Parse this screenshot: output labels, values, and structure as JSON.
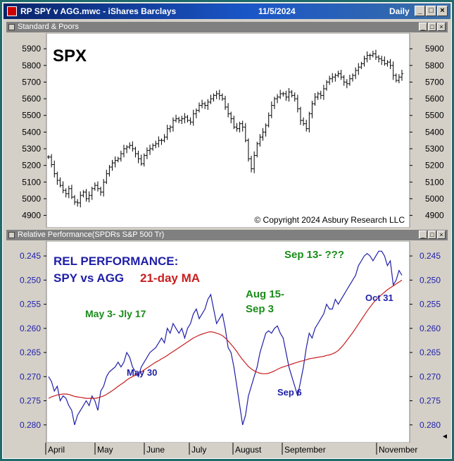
{
  "window": {
    "title": "RP SPY v AGG.mwc - iShares Barclays",
    "date": "11/5/2024",
    "period": "Daily"
  },
  "top_pane": {
    "header": "Standard & Poors",
    "label": "SPX",
    "copyright": "© Copyright 2024 Asbury Research LLC"
  },
  "bottom_pane": {
    "header": "Relative Performance(SPDRs S&P 500 Tr)",
    "title_line1": "REL PERFORMANCE:",
    "title_line2": "SPY vs AGG",
    "ma_label": "21-day MA",
    "annotations": [
      {
        "text": "May 3- Jly 17",
        "color": "#1a8c1a"
      },
      {
        "text": "May 30",
        "color": "#1f1fa8"
      },
      {
        "text": "Aug 15-",
        "color": "#1a8c1a"
      },
      {
        "text": "Sep 3",
        "color": "#1a8c1a"
      },
      {
        "text": "Sep 6",
        "color": "#1f1fa8"
      },
      {
        "text": "Sep 13- ???",
        "color": "#1a8c1a"
      },
      {
        "text": "Oct 31",
        "color": "#1f1fa8"
      }
    ]
  },
  "colors": {
    "price": "#000000",
    "rel": "#1f1fa8",
    "ma": "#c81e1e",
    "green": "#1a8c1a"
  },
  "chart_data": [
    {
      "type": "ohlc",
      "y_ticks": [
        4900,
        5000,
        5100,
        5200,
        5300,
        5400,
        5500,
        5600,
        5700,
        5800,
        5900
      ],
      "ylim": [
        4860,
        5960
      ],
      "x_ticks": [
        "April",
        "May",
        "June",
        "July",
        "August",
        "September",
        "November"
      ],
      "close": [
        5250,
        5205,
        5150,
        5110,
        5080,
        5050,
        5030,
        5060,
        5010,
        4980,
        4975,
        5020,
        5040,
        5000,
        5020,
        5060,
        5080,
        5060,
        5040,
        5100,
        5150,
        5190,
        5215,
        5230,
        5240,
        5270,
        5300,
        5310,
        5320,
        5300,
        5270,
        5240,
        5210,
        5260,
        5290,
        5300,
        5320,
        5330,
        5350,
        5350,
        5370,
        5420,
        5430,
        5470,
        5480,
        5470,
        5480,
        5490,
        5470,
        5460,
        5510,
        5530,
        5560,
        5570,
        5560,
        5580,
        5600,
        5620,
        5630,
        5620,
        5600,
        5550,
        5510,
        5480,
        5430,
        5420,
        5450,
        5430,
        5350,
        5240,
        5180,
        5260,
        5330,
        5370,
        5400,
        5440,
        5500,
        5560,
        5600,
        5610,
        5630,
        5630,
        5610,
        5640,
        5620,
        5600,
        5540,
        5470,
        5450,
        5420,
        5510,
        5570,
        5610,
        5630,
        5620,
        5660,
        5700,
        5720,
        5730,
        5740,
        5750,
        5730,
        5700,
        5690,
        5720,
        5740,
        5770,
        5790,
        5810,
        5840,
        5860,
        5860,
        5870,
        5850,
        5840,
        5830,
        5810,
        5820,
        5800,
        5740,
        5710,
        5730,
        5750
      ]
    },
    {
      "type": "line",
      "y_ticks": [
        0.245,
        0.25,
        0.255,
        0.26,
        0.265,
        0.27,
        0.275,
        0.28
      ],
      "ylim": [
        0.2425,
        0.2831
      ],
      "inverted": true,
      "x_ticks": [
        "April",
        "May",
        "June",
        "July",
        "August",
        "September",
        "November"
      ],
      "series": [
        {
          "name": "SPY vs AGG",
          "values": [
            0.27,
            0.271,
            0.273,
            0.272,
            0.275,
            0.274,
            0.2745,
            0.276,
            0.277,
            0.28,
            0.278,
            0.277,
            0.276,
            0.275,
            0.276,
            0.274,
            0.275,
            0.277,
            0.273,
            0.272,
            0.27,
            0.269,
            0.2685,
            0.268,
            0.267,
            0.268,
            0.267,
            0.265,
            0.266,
            0.268,
            0.269,
            0.27,
            0.268,
            0.267,
            0.266,
            0.265,
            0.2645,
            0.264,
            0.263,
            0.262,
            0.263,
            0.26,
            0.261,
            0.259,
            0.26,
            0.261,
            0.26,
            0.262,
            0.26,
            0.259,
            0.257,
            0.256,
            0.258,
            0.257,
            0.256,
            0.254,
            0.253,
            0.256,
            0.259,
            0.258,
            0.257,
            0.26,
            0.264,
            0.265,
            0.268,
            0.272,
            0.276,
            0.28,
            0.278,
            0.274,
            0.272,
            0.27,
            0.268,
            0.265,
            0.263,
            0.261,
            0.2605,
            0.261,
            0.26,
            0.2595,
            0.261,
            0.262,
            0.265,
            0.268,
            0.27,
            0.272,
            0.274,
            0.271,
            0.268,
            0.264,
            0.261,
            0.262,
            0.26,
            0.259,
            0.258,
            0.257,
            0.255,
            0.256,
            0.256,
            0.254,
            0.255,
            0.254,
            0.253,
            0.252,
            0.251,
            0.25,
            0.249,
            0.247,
            0.246,
            0.245,
            0.2445,
            0.245,
            0.246,
            0.245,
            0.244,
            0.244,
            0.245,
            0.247,
            0.246,
            0.251,
            0.25,
            0.248,
            0.249
          ]
        },
        {
          "name": "21-day MA",
          "values": [
            0.2745,
            0.2742,
            0.274,
            0.2738,
            0.2737,
            0.2736,
            0.2736,
            0.2737,
            0.2739,
            0.2741,
            0.2742,
            0.2743,
            0.2744,
            0.2745,
            0.2745,
            0.2745,
            0.2745,
            0.2744,
            0.2742,
            0.274,
            0.2737,
            0.2733,
            0.2729,
            0.2725,
            0.272,
            0.2716,
            0.2712,
            0.2707,
            0.2703,
            0.27,
            0.2697,
            0.2694,
            0.269,
            0.2686,
            0.2682,
            0.2678,
            0.2674,
            0.267,
            0.2667,
            0.2663,
            0.266,
            0.2656,
            0.2652,
            0.2648,
            0.2644,
            0.264,
            0.2636,
            0.2632,
            0.2628,
            0.2624,
            0.262,
            0.2617,
            0.2614,
            0.2612,
            0.261,
            0.2608,
            0.2607,
            0.2608,
            0.261,
            0.2612,
            0.2615,
            0.262,
            0.2626,
            0.2633,
            0.264,
            0.2648,
            0.2657,
            0.2665,
            0.2672,
            0.2679,
            0.2684,
            0.2688,
            0.2691,
            0.2693,
            0.2694,
            0.2694,
            0.2693,
            0.2691,
            0.2688,
            0.2685,
            0.2682,
            0.268,
            0.2678,
            0.2676,
            0.2674,
            0.2672,
            0.267,
            0.2668,
            0.2667,
            0.2665,
            0.2663,
            0.2662,
            0.2661,
            0.266,
            0.2659,
            0.2658,
            0.2656,
            0.2655,
            0.2653,
            0.265,
            0.2646,
            0.264,
            0.2633,
            0.2625,
            0.2617,
            0.2609,
            0.26,
            0.2591,
            0.2582,
            0.2573,
            0.2564,
            0.2556,
            0.2548,
            0.2541,
            0.2535,
            0.253,
            0.2525,
            0.252,
            0.2516,
            0.2512,
            0.2508,
            0.2504,
            0.25
          ]
        }
      ]
    }
  ]
}
